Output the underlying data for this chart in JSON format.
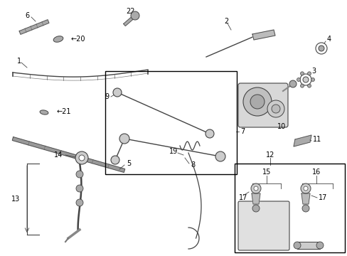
{
  "background_color": "#ffffff",
  "border_color": "#000000",
  "line_color": "#444444",
  "text_color": "#000000",
  "figsize": [
    4.89,
    3.6
  ],
  "dpi": 100
}
